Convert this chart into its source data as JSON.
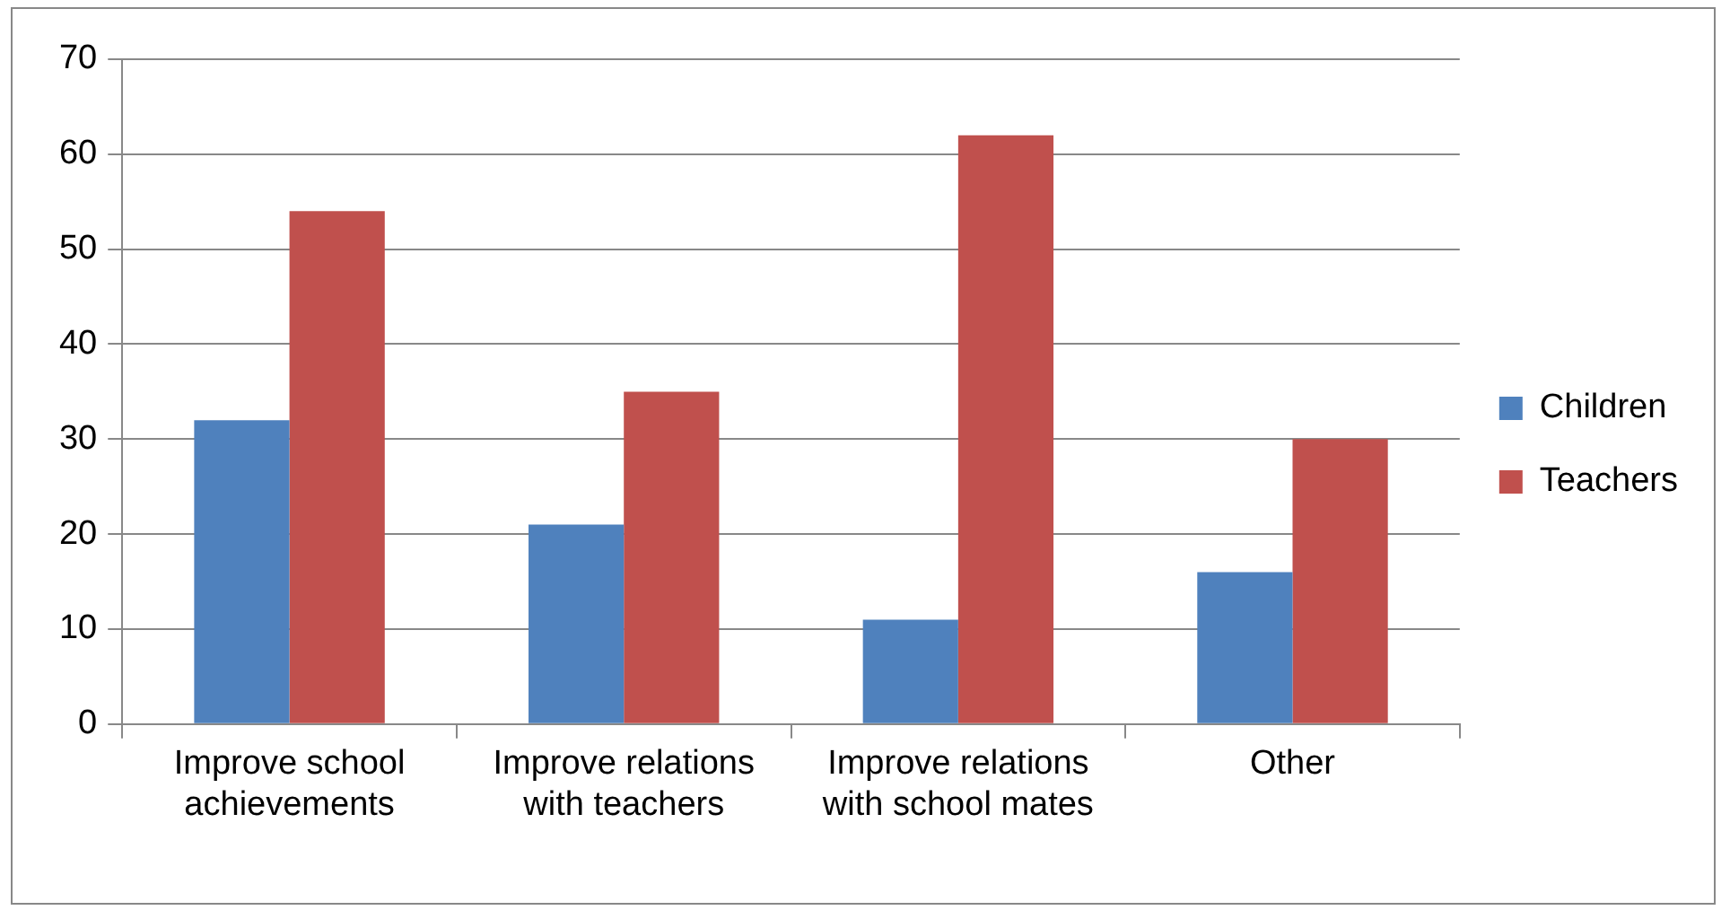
{
  "chart_data": {
    "type": "bar",
    "categories": [
      "Improve school achievements",
      "Improve relations with teachers",
      "Improve relations with school mates",
      "Other"
    ],
    "series": [
      {
        "name": "Children",
        "color": "#4f81bd",
        "values": [
          32,
          21,
          11,
          16
        ]
      },
      {
        "name": "Teachers",
        "color": "#c0504d",
        "values": [
          54,
          35,
          62,
          30
        ]
      }
    ],
    "ylim": [
      0,
      70
    ],
    "yticks": [
      0,
      10,
      20,
      30,
      40,
      50,
      60,
      70
    ],
    "grid": "y",
    "legend": "right"
  }
}
